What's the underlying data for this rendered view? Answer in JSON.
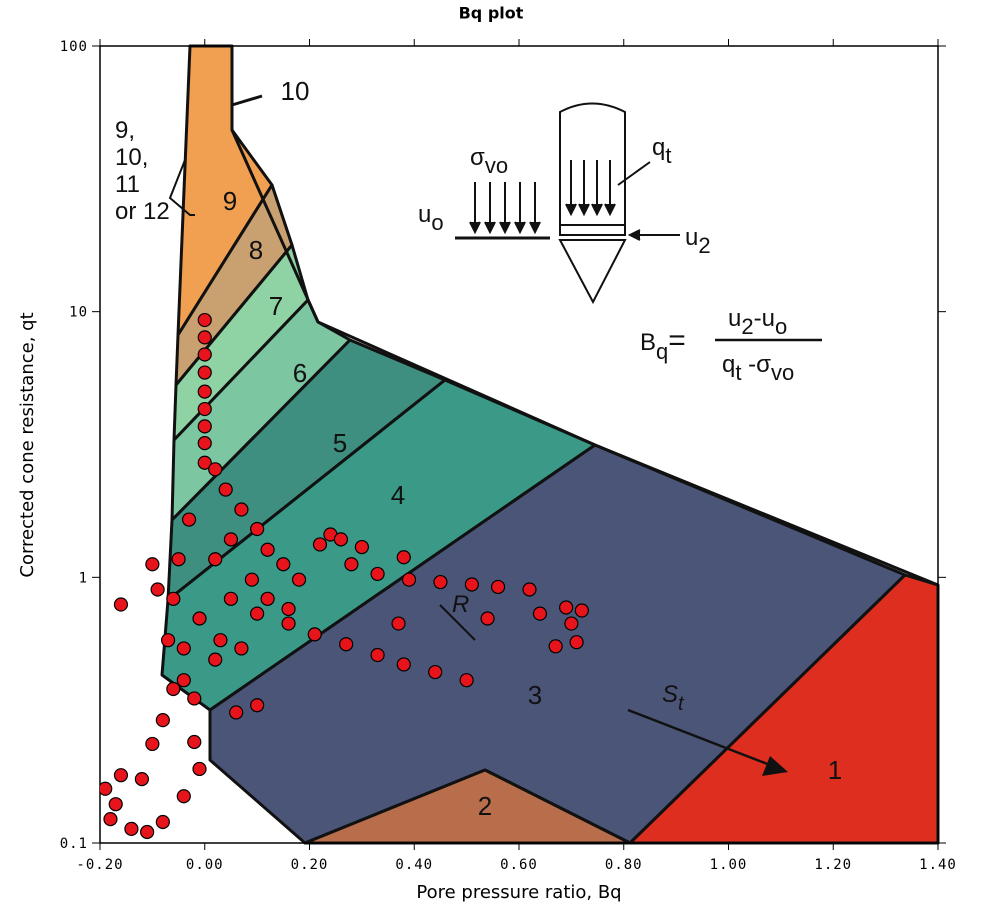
{
  "chart_data": {
    "type": "scatter",
    "title": "Bq plot",
    "x_label": "Pore pressure ratio, Bq",
    "y_label": "Corrected cone resistance, qt",
    "xlim": [
      -0.2,
      1.4
    ],
    "ylim": [
      0.1,
      100
    ],
    "y_scale": "log",
    "xticks": [
      {
        "value": -0.2,
        "label": "-0.20"
      },
      {
        "value": 0,
        "label": "0.00"
      },
      {
        "value": 0.2,
        "label": "0.20"
      },
      {
        "value": 0.4,
        "label": "0.40"
      },
      {
        "value": 0.6,
        "label": "0.60"
      },
      {
        "value": 0.8,
        "label": "0.80"
      },
      {
        "value": 1,
        "label": "1.00"
      },
      {
        "value": 1.2,
        "label": "1.20"
      },
      {
        "value": 1.4,
        "label": "1.40"
      }
    ],
    "yticks": [
      0.1,
      1,
      10,
      100
    ],
    "color": "#e8141c",
    "x": [
      0,
      0,
      0,
      0,
      0,
      0,
      0,
      0,
      0,
      -0.19,
      -0.18,
      -0.17,
      -0.16,
      -0.14,
      -0.12,
      -0.1,
      -0.08,
      -0.06,
      -0.04,
      -0.02,
      0.05,
      0.1,
      0.16,
      0.21,
      0.27,
      0.33,
      0.38,
      0.44,
      0.5,
      0.22,
      0.28,
      0.33,
      0.39,
      0.45,
      0.51,
      0.56,
      0.62,
      0.64,
      0.7,
      0.67,
      0.71,
      0.69,
      0.72,
      0.54,
      0.37,
      0.38,
      0.3,
      0.24,
      0.26,
      0.06,
      0.1,
      0.02,
      0.02,
      0.04,
      0.07,
      0.1,
      0.12,
      0.15,
      0.18,
      -0.03,
      -0.05,
      -0.06,
      -0.07,
      -0.04,
      -0.01,
      0.02,
      0.05,
      0.09,
      0.12,
      0.16,
      0.03,
      0.07,
      -0.09,
      -0.1,
      -0.16,
      -0.02,
      -0.01,
      -0.04,
      -0.08,
      -0.11
    ],
    "y": [
      9.3,
      8.0,
      6.9,
      5.9,
      5.0,
      4.3,
      3.7,
      3.2,
      2.7,
      0.16,
      0.123,
      0.14,
      0.18,
      0.113,
      0.174,
      0.236,
      0.29,
      0.38,
      0.54,
      0.35,
      0.83,
      0.73,
      0.67,
      0.61,
      0.56,
      0.51,
      0.47,
      0.44,
      0.41,
      1.33,
      1.12,
      1.03,
      0.98,
      0.96,
      0.94,
      0.92,
      0.9,
      0.73,
      0.67,
      0.55,
      0.57,
      0.77,
      0.75,
      0.7,
      0.67,
      1.19,
      1.3,
      1.45,
      1.39,
      0.31,
      0.33,
      0.49,
      2.55,
      2.14,
      1.8,
      1.52,
      1.27,
      1.12,
      0.98,
      1.65,
      1.17,
      0.83,
      0.58,
      0.41,
      0.7,
      1.17,
      1.39,
      0.98,
      0.83,
      0.76,
      0.58,
      0.54,
      0.9,
      1.12,
      0.79,
      0.24,
      0.19,
      0.15,
      0.12,
      0.11
    ],
    "zone_labels": [
      "1",
      "2",
      "3",
      "4",
      "5",
      "6",
      "7",
      "8",
      "9",
      "10"
    ],
    "annotations": {
      "zone_group": [
        "9,",
        "10,",
        "11",
        "or 12"
      ],
      "r": "R",
      "st": [
        "S",
        "t"
      ],
      "sigma": [
        "σ",
        "vo"
      ],
      "u0": [
        "u",
        "o"
      ],
      "qt": [
        "q",
        "t"
      ],
      "u2": [
        "u",
        "2"
      ],
      "bq": [
        "B",
        "q",
        "="
      ],
      "numerator": [
        "u",
        "2",
        "-u",
        "o"
      ],
      "denominator": [
        "q",
        "t",
        " -σ",
        "vo"
      ]
    }
  }
}
